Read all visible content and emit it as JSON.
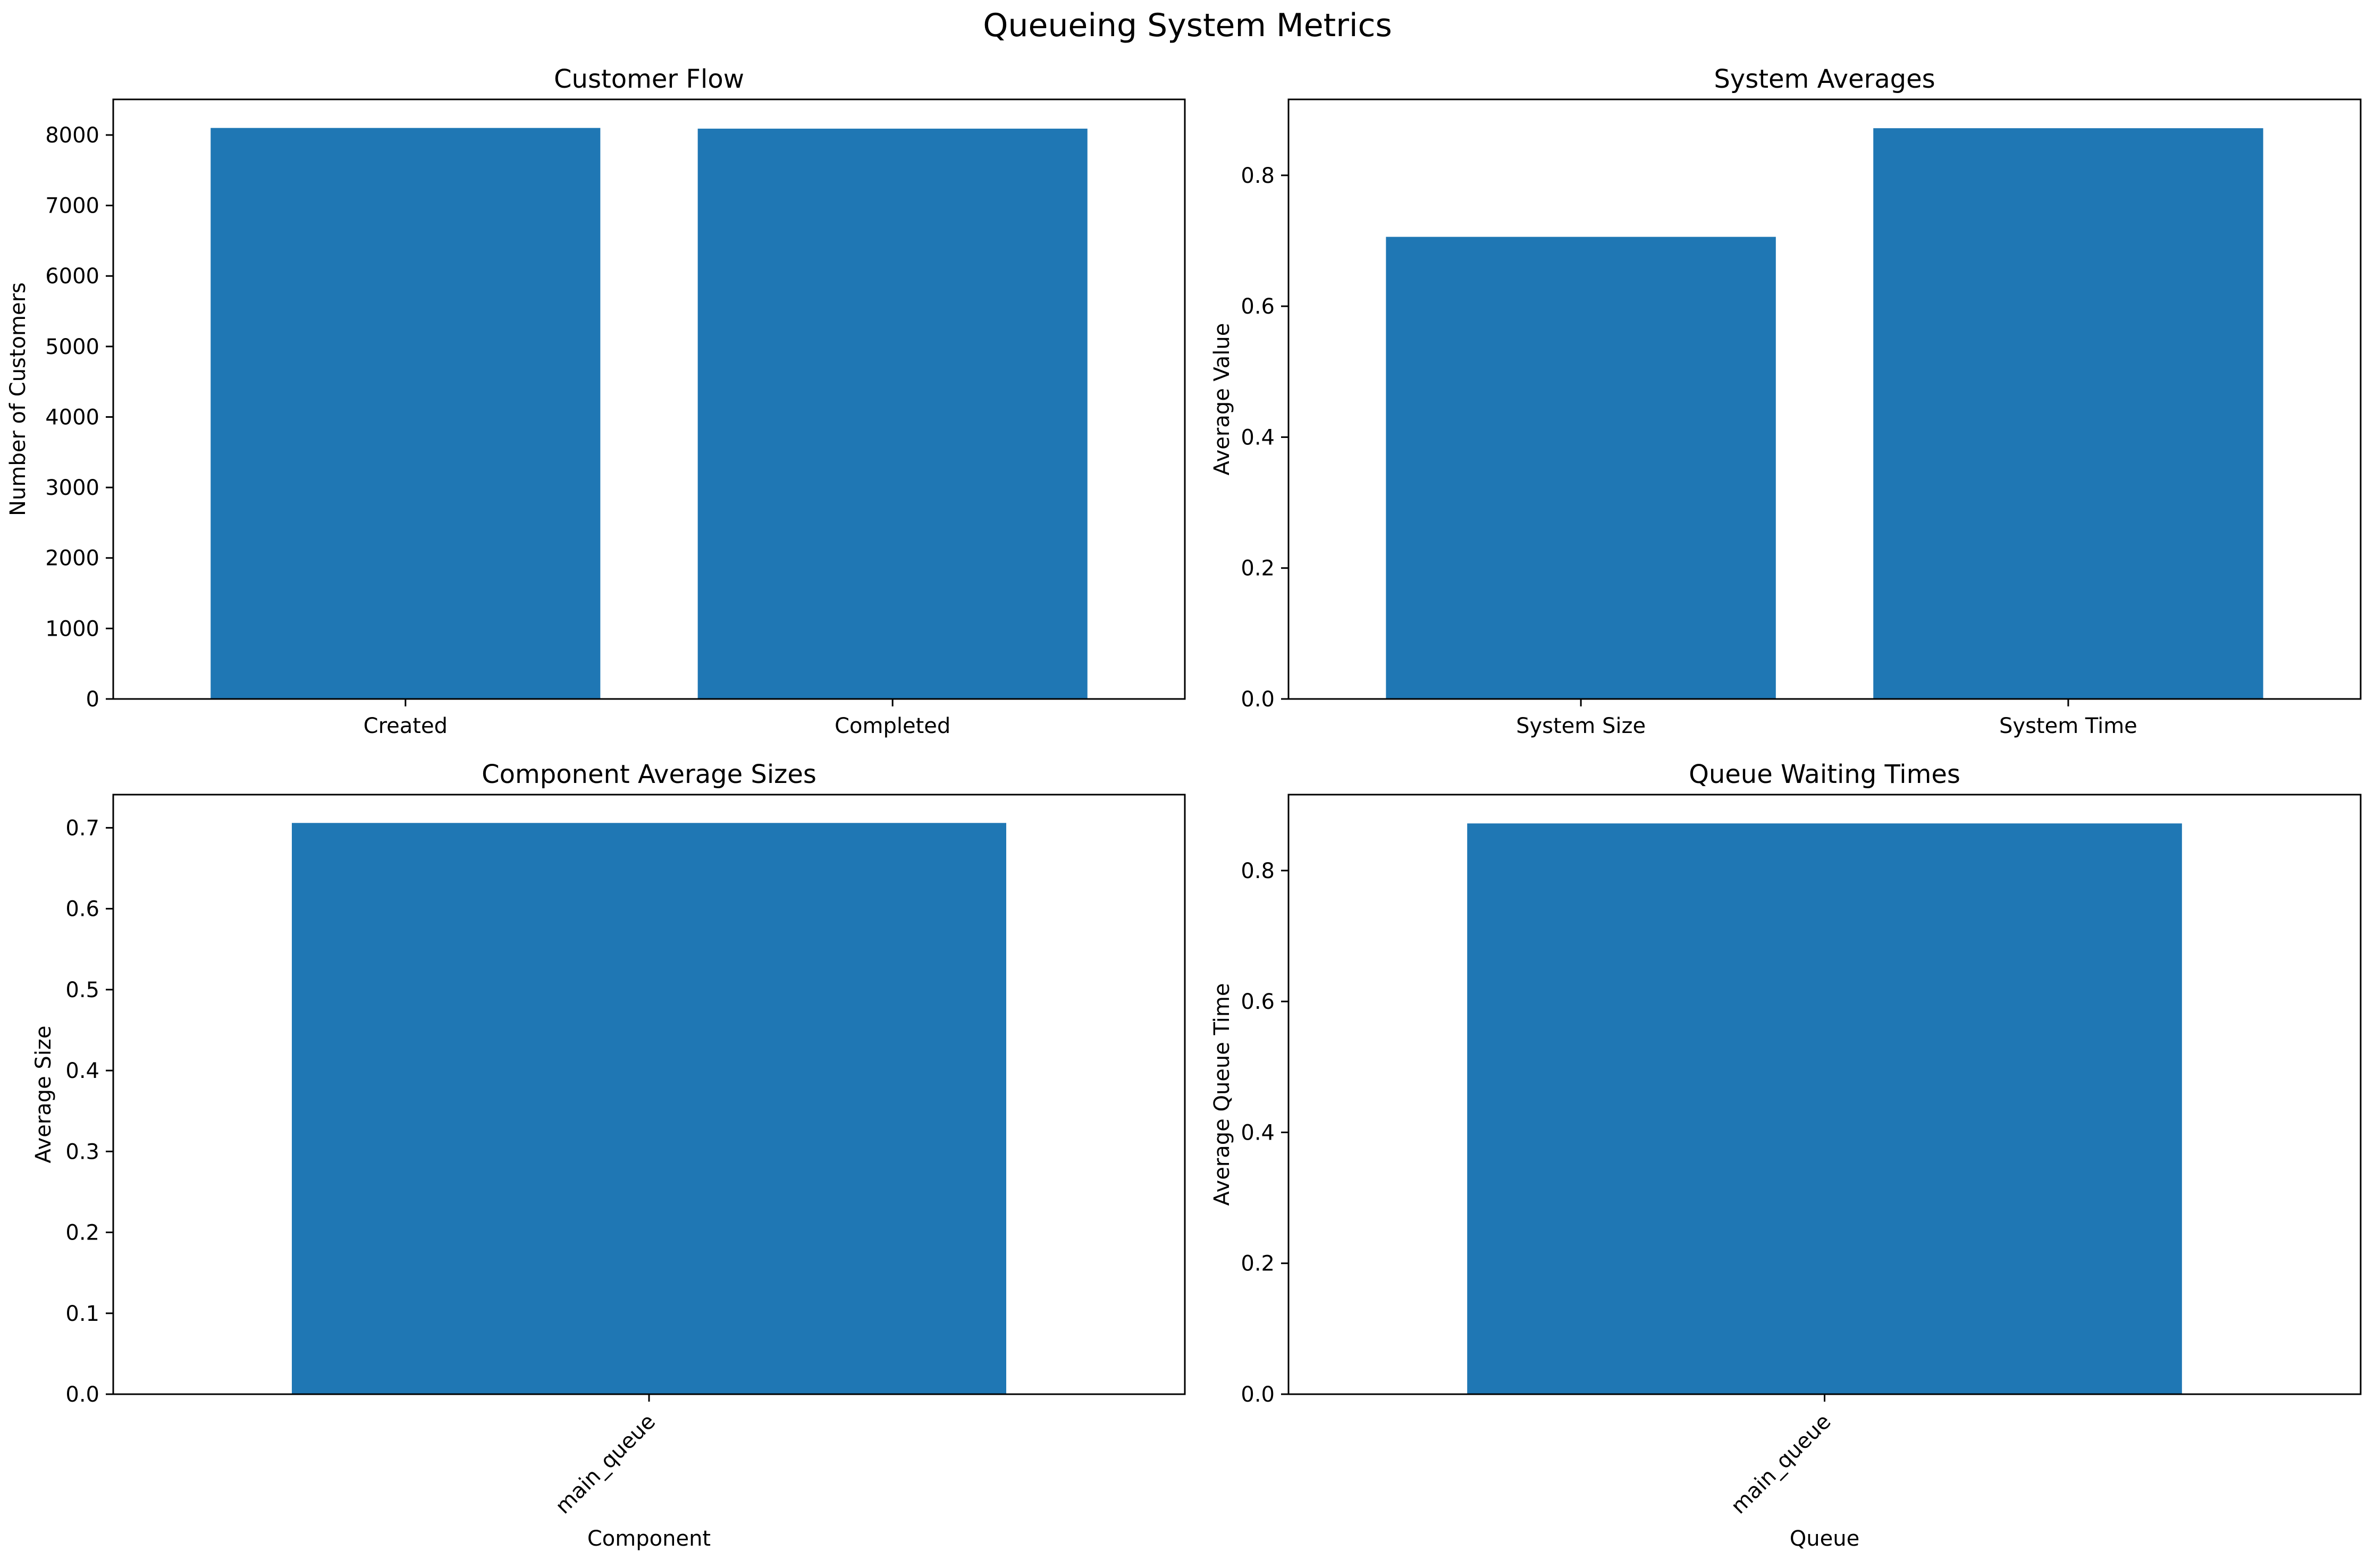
{
  "figure": {
    "title": "Queueing System Metrics",
    "bar_color": "#1f77b4"
  },
  "chart_data": [
    {
      "type": "bar",
      "title": "Customer Flow",
      "xlabel": "",
      "ylabel": "Number of Customers",
      "categories": [
        "Created",
        "Completed"
      ],
      "values": [
        8100,
        8090
      ],
      "ylim": [
        0,
        8505
      ],
      "yticks": [
        0,
        1000,
        2000,
        3000,
        4000,
        5000,
        6000,
        7000,
        8000
      ],
      "ytick_labels": [
        "0",
        "1000",
        "2000",
        "3000",
        "4000",
        "5000",
        "6000",
        "7000",
        "8000"
      ],
      "rotate_xticks": false,
      "grid": false
    },
    {
      "type": "bar",
      "title": "System Averages",
      "xlabel": "",
      "ylabel": "Average Value",
      "categories": [
        "System Size",
        "System Time"
      ],
      "values": [
        0.706,
        0.872
      ],
      "ylim": [
        0,
        0.916
      ],
      "yticks": [
        0,
        0.2,
        0.4,
        0.6,
        0.8
      ],
      "ytick_labels": [
        "0.0",
        "0.2",
        "0.4",
        "0.6",
        "0.8"
      ],
      "rotate_xticks": false,
      "grid": false
    },
    {
      "type": "bar",
      "title": "Component Average Sizes",
      "xlabel": "Component",
      "ylabel": "Average Size",
      "categories": [
        "main_queue"
      ],
      "values": [
        0.706
      ],
      "ylim": [
        0,
        0.741
      ],
      "yticks": [
        0,
        0.1,
        0.2,
        0.3,
        0.4,
        0.5,
        0.6,
        0.7
      ],
      "ytick_labels": [
        "0.0",
        "0.1",
        "0.2",
        "0.3",
        "0.4",
        "0.5",
        "0.6",
        "0.7"
      ],
      "rotate_xticks": true,
      "grid": false
    },
    {
      "type": "bar",
      "title": "Queue Waiting Times",
      "xlabel": "Queue",
      "ylabel": "Average Queue Time",
      "categories": [
        "main_queue"
      ],
      "values": [
        0.872
      ],
      "ylim": [
        0,
        0.916
      ],
      "yticks": [
        0,
        0.2,
        0.4,
        0.6,
        0.8
      ],
      "ytick_labels": [
        "0.0",
        "0.2",
        "0.4",
        "0.6",
        "0.8"
      ],
      "rotate_xticks": true,
      "grid": false
    }
  ]
}
